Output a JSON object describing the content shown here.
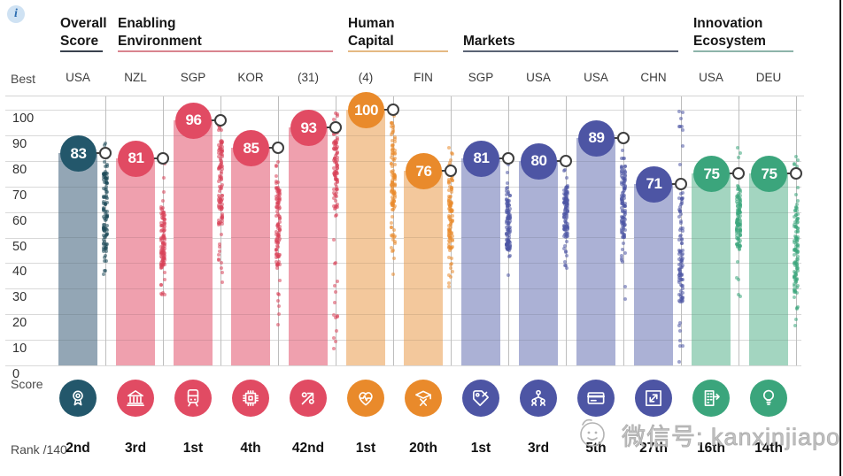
{
  "info_button": {
    "label": "i"
  },
  "axis": {
    "best_label": "Best",
    "score_label": "Score",
    "rank_label": "Rank /140",
    "ticks": [
      100,
      90,
      80,
      70,
      60,
      50,
      40,
      30,
      20,
      10,
      0
    ]
  },
  "watermark": {
    "text": "微信号: kanxinjiapo",
    "face_icon": "wechat-doodle-face-icon",
    "color": "#bdbdbd"
  },
  "chart_data": {
    "type": "bar",
    "ylim": [
      0,
      100
    ],
    "grid": true,
    "groups": [
      {
        "label": "Overall Score",
        "underline_color": "#39424e",
        "columns": [
          {
            "best": "USA",
            "score": 83,
            "rank": "2nd",
            "icon": "award-rosette-icon",
            "colors": {
              "circle": "#23576b",
              "bar": "#93a6b5",
              "dot": "#1e4a5a"
            },
            "dist": {
              "min": 35,
              "max": 88,
              "dense_min": 45,
              "dense_max": 78
            }
          }
        ]
      },
      {
        "label": "Enabling Environment",
        "underline_color": "#d9848f",
        "columns": [
          {
            "best": "NZL",
            "score": 81,
            "rank": "3rd",
            "icon": "bank-icon",
            "colors": {
              "circle": "#e14b63",
              "bar": "#efa0ae",
              "dot": "#d94158"
            },
            "dist": {
              "min": 27,
              "max": 81,
              "dense_min": 38,
              "dense_max": 62
            }
          },
          {
            "best": "SGP",
            "score": 96,
            "rank": "1st",
            "icon": "tram-icon",
            "colors": {
              "circle": "#e14b63",
              "bar": "#efa0ae",
              "dot": "#d94158"
            },
            "dist": {
              "min": 29,
              "max": 96,
              "dense_min": 55,
              "dense_max": 88
            }
          },
          {
            "best": "KOR",
            "score": 85,
            "rank": "4th",
            "icon": "chip-icon",
            "colors": {
              "circle": "#e14b63",
              "bar": "#efa0ae",
              "dot": "#d94158"
            },
            "dist": {
              "min": 15,
              "max": 85,
              "dense_min": 38,
              "dense_max": 72
            }
          },
          {
            "best": "(31)",
            "score": 93,
            "rank": "42nd",
            "icon": "percent-arrow-icon",
            "colors": {
              "circle": "#e14b63",
              "bar": "#efa0ae",
              "dot": "#d94158"
            },
            "dist": {
              "min": 2,
              "max": 100,
              "dense_min": 58,
              "dense_max": 95
            }
          }
        ]
      },
      {
        "label": "Human Capital",
        "underline_color": "#e5b983",
        "columns": [
          {
            "best": "(4)",
            "score": 100,
            "rank": "1st",
            "icon": "heart-pulse-icon",
            "colors": {
              "circle": "#e98a2b",
              "bar": "#f3c89c",
              "dot": "#e98a2b"
            },
            "dist": {
              "min": 35,
              "max": 100,
              "dense_min": 60,
              "dense_max": 95
            }
          },
          {
            "best": "FIN",
            "score": 76,
            "rank": "20th",
            "icon": "mortarboard-icon",
            "colors": {
              "circle": "#e98a2b",
              "bar": "#f3c89c",
              "dot": "#e98a2b"
            },
            "dist": {
              "min": 30,
              "max": 87,
              "dense_min": 45,
              "dense_max": 75
            }
          }
        ]
      },
      {
        "label": "Markets",
        "underline_color": "#5a6374",
        "columns": [
          {
            "best": "SGP",
            "score": 81,
            "rank": "1st",
            "icon": "price-tag-icon",
            "colors": {
              "circle": "#4d55a4",
              "bar": "#abb1d5",
              "dot": "#4d55a4"
            },
            "dist": {
              "min": 35,
              "max": 81,
              "dense_min": 45,
              "dense_max": 65
            }
          },
          {
            "best": "USA",
            "score": 80,
            "rank": "3rd",
            "icon": "org-people-icon",
            "colors": {
              "circle": "#4d55a4",
              "bar": "#abb1d5",
              "dot": "#4d55a4"
            },
            "dist": {
              "min": 38,
              "max": 80,
              "dense_min": 50,
              "dense_max": 70
            }
          },
          {
            "best": "USA",
            "score": 89,
            "rank": "5th",
            "icon": "credit-card-icon",
            "colors": {
              "circle": "#4d55a4",
              "bar": "#abb1d5",
              "dot": "#4d55a4"
            },
            "dist": {
              "min": 25,
              "max": 92,
              "dense_min": 50,
              "dense_max": 78
            }
          },
          {
            "best": "CHN",
            "score": 71,
            "rank": "27th",
            "icon": "expand-arrows-icon",
            "colors": {
              "circle": "#4d55a4",
              "bar": "#abb1d5",
              "dot": "#4d55a4"
            },
            "dist": {
              "min": 0,
              "max": 100,
              "dense_min": 25,
              "dense_max": 72
            }
          }
        ]
      },
      {
        "label": "Innovation Ecosystem",
        "underline_color": "#8db4aa",
        "columns": [
          {
            "best": "USA",
            "score": 75,
            "rank": "16th",
            "icon": "building-arrow-icon",
            "colors": {
              "circle": "#3ba57c",
              "bar": "#a3d5c0",
              "dot": "#3ba57c"
            },
            "dist": {
              "min": 25,
              "max": 86,
              "dense_min": 45,
              "dense_max": 70
            }
          },
          {
            "best": "DEU",
            "score": 75,
            "rank": "14th",
            "icon": "lightbulb-icon",
            "colors": {
              "circle": "#3ba57c",
              "bar": "#a3d5c0",
              "dot": "#3ba57c"
            },
            "dist": {
              "min": 15,
              "max": 87,
              "dense_min": 28,
              "dense_max": 62
            }
          }
        ]
      }
    ]
  }
}
